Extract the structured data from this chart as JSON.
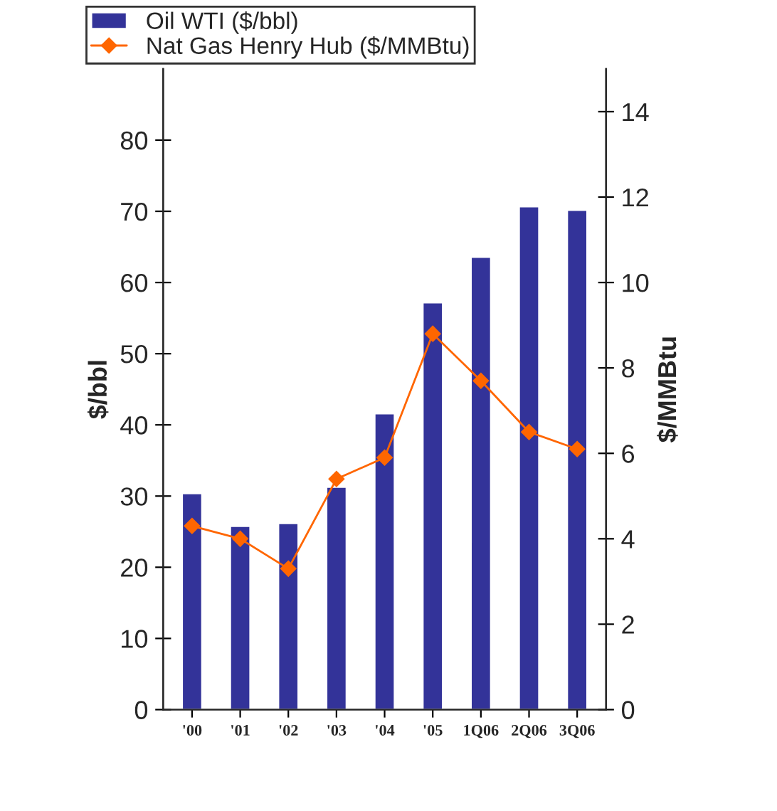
{
  "chart_data": {
    "type": "bar",
    "categories": [
      "'00",
      "'01",
      "'02",
      "'03",
      "'04",
      "'05",
      "1Q06",
      "2Q06",
      "3Q06"
    ],
    "series": [
      {
        "name": "Oil WTI ($/bbl)",
        "color": "#333399",
        "values": [
          30.4,
          25.8,
          26.2,
          31.3,
          41.6,
          57.2,
          63.6,
          70.7,
          70.2
        ]
      },
      {
        "name": "Nat Gas Henry Hub ($/MMBtu)",
        "type": "line",
        "axis": "y2",
        "color": "#ff6600",
        "values": [
          4.3,
          4.0,
          3.3,
          5.4,
          5.9,
          8.8,
          7.7,
          6.5,
          6.1
        ]
      }
    ],
    "ylabel": "$/bbl",
    "y2label": "$/MMBtu",
    "ylim": [
      0,
      90
    ],
    "yticks": [
      0,
      10,
      20,
      30,
      40,
      50,
      60,
      70,
      80
    ],
    "y2lim": [
      0,
      15
    ],
    "y2ticks": [
      0,
      2,
      4,
      6,
      8,
      10,
      12,
      14
    ],
    "marker": "diamond",
    "line_style": "solid",
    "grid": false,
    "legend": "top left"
  }
}
